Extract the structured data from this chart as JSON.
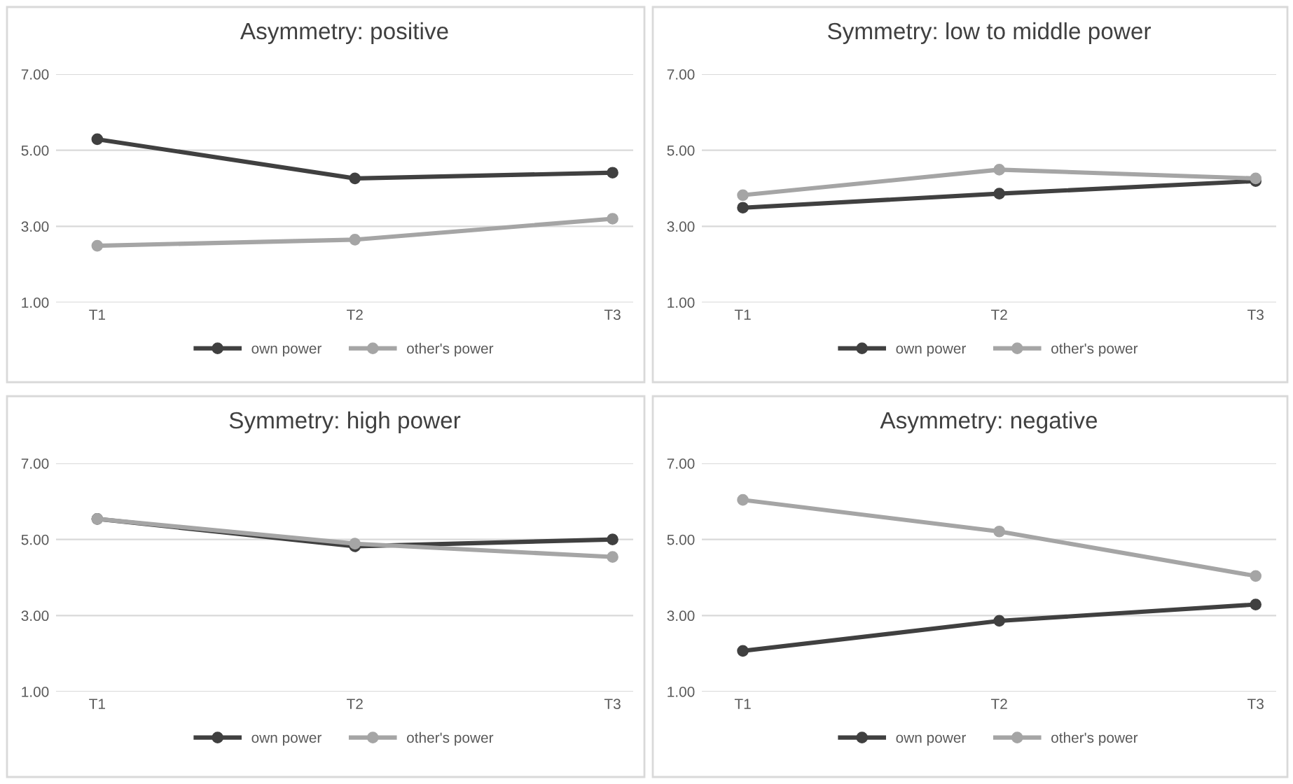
{
  "chart_data": [
    {
      "type": "line",
      "title": "Asymmetry: positive",
      "categories": [
        "T1",
        "T2",
        "T3"
      ],
      "ylim": [
        1,
        7
      ],
      "yticks": [
        {
          "value": 1,
          "label": "1.00"
        },
        {
          "value": 3,
          "label": "3.00"
        },
        {
          "value": 5,
          "label": "5.00"
        },
        {
          "value": 7,
          "label": "7.00"
        }
      ],
      "grid": "y",
      "legend": "bottom",
      "marker": "circle",
      "series": [
        {
          "name": "own power",
          "color": "#404040",
          "values": [
            5.29,
            4.26,
            4.41
          ]
        },
        {
          "name": "other's power",
          "color": "#a5a5a5",
          "values": [
            2.49,
            2.65,
            3.2
          ]
        }
      ]
    },
    {
      "type": "line",
      "title": "Symmetry: low to middle power",
      "categories": [
        "T1",
        "T2",
        "T3"
      ],
      "ylim": [
        1,
        7
      ],
      "yticks": [
        {
          "value": 1,
          "label": "1.00"
        },
        {
          "value": 3,
          "label": "3.00"
        },
        {
          "value": 5,
          "label": "5.00"
        },
        {
          "value": 7,
          "label": "7.00"
        }
      ],
      "grid": "y",
      "legend": "bottom",
      "marker": "circle",
      "series": [
        {
          "name": "own power",
          "color": "#404040",
          "values": [
            3.49,
            3.86,
            4.19
          ]
        },
        {
          "name": "other's power",
          "color": "#a5a5a5",
          "values": [
            3.82,
            4.49,
            4.26
          ]
        }
      ]
    },
    {
      "type": "line",
      "title": "Symmetry: high power",
      "categories": [
        "T1",
        "T2",
        "T3"
      ],
      "ylim": [
        1,
        7
      ],
      "yticks": [
        {
          "value": 1,
          "label": "1.00"
        },
        {
          "value": 3,
          "label": "3.00"
        },
        {
          "value": 5,
          "label": "5.00"
        },
        {
          "value": 7,
          "label": "7.00"
        }
      ],
      "grid": "y",
      "legend": "bottom",
      "marker": "circle",
      "series": [
        {
          "name": "own power",
          "color": "#404040",
          "values": [
            5.54,
            4.82,
            5.0
          ]
        },
        {
          "name": "other's power",
          "color": "#a5a5a5",
          "values": [
            5.54,
            4.89,
            4.54
          ]
        }
      ]
    },
    {
      "type": "line",
      "title": "Asymmetry: negative",
      "categories": [
        "T1",
        "T2",
        "T3"
      ],
      "ylim": [
        1,
        7
      ],
      "yticks": [
        {
          "value": 1,
          "label": "1.00"
        },
        {
          "value": 3,
          "label": "3.00"
        },
        {
          "value": 5,
          "label": "5.00"
        },
        {
          "value": 7,
          "label": "7.00"
        }
      ],
      "grid": "y",
      "legend": "bottom",
      "marker": "circle",
      "series": [
        {
          "name": "own power",
          "color": "#404040",
          "values": [
            2.07,
            2.86,
            3.29
          ]
        },
        {
          "name": "other's power",
          "color": "#a5a5a5",
          "values": [
            6.04,
            5.21,
            4.04
          ]
        }
      ]
    }
  ]
}
